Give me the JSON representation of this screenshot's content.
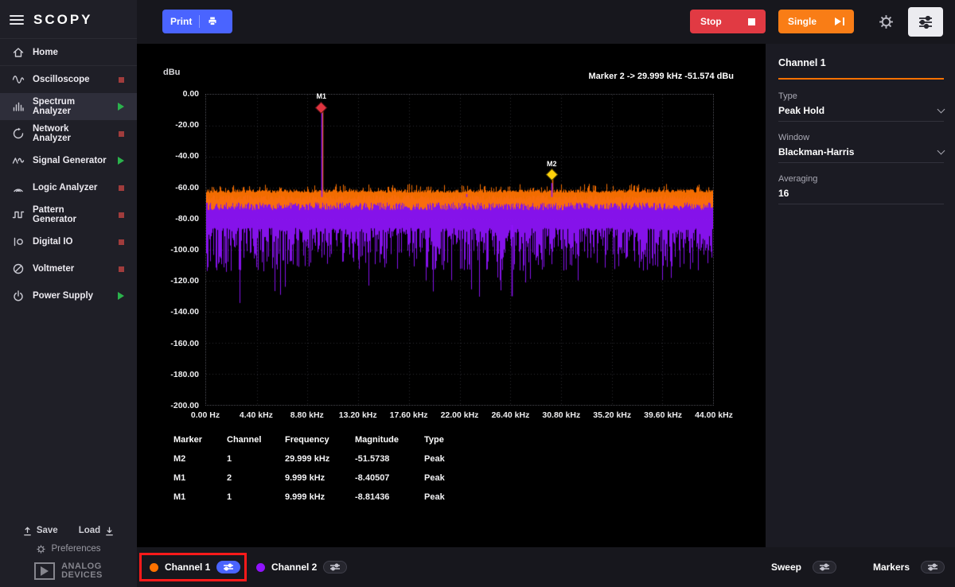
{
  "app": {
    "logo": "SCOPY"
  },
  "colors": {
    "accent_orange": "#ff7200",
    "channel1": "#ff7200",
    "channel2": "#9013fe",
    "print_button_blue": "#4a64ff",
    "stop_button_red": "#e13a43",
    "single_button_orange": "#f97d16",
    "running_green": "#2bb24c",
    "stopped_red": "#a03c3c",
    "annotation_red": "#ff1a1a"
  },
  "sidebar": {
    "home_label": "Home",
    "items": [
      {
        "label": "Oscilloscope",
        "icon": "oscilloscope-icon",
        "state": "stopped",
        "active": false
      },
      {
        "label": "Spectrum Analyzer",
        "icon": "spectrum-analyzer-icon",
        "state": "running",
        "active": true
      },
      {
        "label": "Network Analyzer",
        "icon": "network-analyzer-icon",
        "state": "stopped",
        "active": false
      },
      {
        "label": "Signal Generator",
        "icon": "signal-generator-icon",
        "state": "running",
        "active": false
      },
      {
        "label": "Logic Analyzer",
        "icon": "logic-analyzer-icon",
        "state": "stopped",
        "active": false
      },
      {
        "label": "Pattern Generator",
        "icon": "pattern-generator-icon",
        "state": "stopped",
        "active": false
      },
      {
        "label": "Digital IO",
        "icon": "digital-io-icon",
        "state": "stopped",
        "active": false
      },
      {
        "label": "Voltmeter",
        "icon": "voltmeter-icon",
        "state": "stopped",
        "active": false
      },
      {
        "label": "Power Supply",
        "icon": "power-supply-icon",
        "state": "running",
        "active": false
      }
    ],
    "save_label": "Save",
    "load_label": "Load",
    "preferences_label": "Preferences",
    "brand": {
      "line1": "ANALOG",
      "line2": "DEVICES"
    }
  },
  "topbar": {
    "print_label": "Print",
    "stop_label": "Stop",
    "single_label": "Single"
  },
  "plot": {
    "unit_label": "dBu",
    "marker_readout": "Marker 2 -> 29.999 kHz -51.574 dBu"
  },
  "marker_table": {
    "headers": [
      "Marker",
      "Channel",
      "Frequency",
      "Magnitude",
      "Type"
    ],
    "rows": [
      [
        "M2",
        "1",
        "29.999 kHz",
        "-51.5738",
        "Peak"
      ],
      [
        "M1",
        "2",
        "9.999 kHz",
        "-8.40507",
        "Peak"
      ],
      [
        "M1",
        "1",
        "9.999 kHz",
        "-8.81436",
        "Peak"
      ]
    ]
  },
  "right_panel": {
    "title": "Channel 1",
    "type_label": "Type",
    "type_value": "Peak Hold",
    "window_label": "Window",
    "window_value": "Blackman-Harris",
    "averaging_label": "Averaging",
    "averaging_value": "16"
  },
  "bottom_bar": {
    "channel1_label": "Channel 1",
    "channel2_label": "Channel 2",
    "sweep_label": "Sweep",
    "markers_label": "Markers"
  },
  "chart_data": {
    "type": "line",
    "title": "",
    "ylabel": "dBu",
    "x_range_hz": [
      0,
      44000
    ],
    "y_range_dbu": [
      -200,
      0
    ],
    "grid": true,
    "x_tick_labels": [
      "0.00 Hz",
      "4.40 kHz",
      "8.80 kHz",
      "13.20 kHz",
      "17.60 kHz",
      "22.00 kHz",
      "26.40 kHz",
      "30.80 kHz",
      "35.20 kHz",
      "39.60 kHz",
      "44.00 kHz"
    ],
    "y_tick_labels": [
      "0.00",
      "-20.00",
      "-40.00",
      "-60.00",
      "-80.00",
      "-100.00",
      "-120.00",
      "-140.00",
      "-160.00",
      "-180.00",
      "-200.00"
    ],
    "series": [
      {
        "name": "Channel 1",
        "color": "#ff7200",
        "mode": "Peak Hold",
        "noise_floor_dbu": [
          -75,
          -58
        ],
        "peaks": [
          {
            "freq_hz": 9999,
            "dbu": -8.81436
          },
          {
            "freq_hz": 29999,
            "dbu": -51.5738
          },
          {
            "freq_hz": 22600,
            "dbu": -62
          }
        ]
      },
      {
        "name": "Channel 2",
        "color": "#9013fe",
        "mode": "",
        "noise_floor_dbu": [
          -130,
          -64
        ],
        "peaks": [
          {
            "freq_hz": 9999,
            "dbu": -8.40507
          },
          {
            "freq_hz": 29999,
            "dbu": -57
          },
          {
            "freq_hz": 22600,
            "dbu": -64
          }
        ],
        "notches": [
          {
            "freq_hz": 26500,
            "dbu": -130
          }
        ]
      }
    ],
    "plot_markers": [
      {
        "id": "M1",
        "freq_hz": 9999,
        "dbu": -8.4,
        "color": "#e0343f"
      },
      {
        "id": "M2",
        "freq_hz": 29999,
        "dbu": -51.574,
        "color": "#ffd20a"
      }
    ]
  }
}
